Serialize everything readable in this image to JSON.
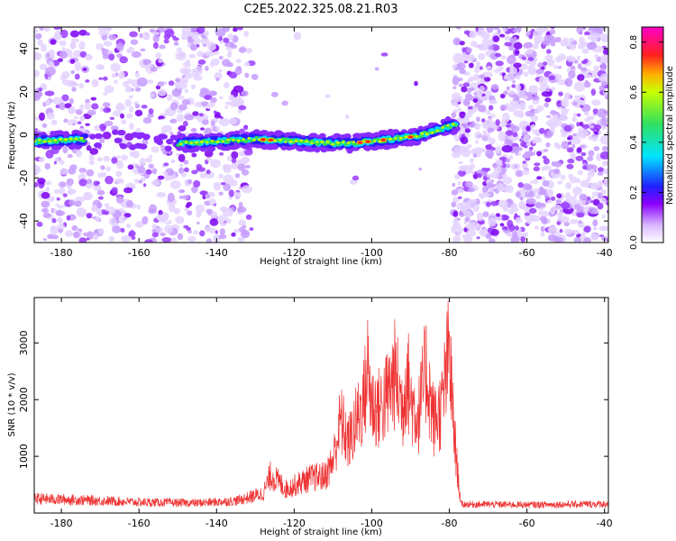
{
  "figure_title": "C2E5.2022.325.08.21.R03",
  "chart_data": [
    {
      "type": "heatmap",
      "xlabel": "Height of straight line (km)",
      "ylabel": "Frequency (Hz)",
      "xlim": [
        -187,
        -39
      ],
      "ylim": [
        -50,
        50
      ],
      "xticks": [
        -180,
        -160,
        -140,
        -120,
        -100,
        -80,
        -60,
        -40
      ],
      "yticks": [
        -40,
        -20,
        0,
        20,
        40
      ],
      "colorbar": {
        "label": "Normalized spectral amplitude",
        "range": [
          0,
          0.86
        ],
        "ticks": [
          0.0,
          0.2,
          0.4,
          0.6,
          0.8
        ],
        "colormap": "rainbow (white-violet-blue-cyan-green-yellow-red-magenta)"
      },
      "signal_trace": {
        "x": [
          -187,
          -175,
          -165,
          -150,
          -140,
          -130,
          -120,
          -110,
          -105,
          -100,
          -95,
          -90,
          -85,
          -80,
          -78
        ],
        "y": [
          -3,
          -2,
          -2,
          -4,
          -3,
          -2,
          -3,
          -4,
          -4,
          -3,
          -2,
          -1,
          1,
          4,
          5
        ]
      },
      "noise_regions": [
        {
          "x": [
            -187,
            -131
          ],
          "level": "moderate"
        },
        {
          "x": [
            -131,
            -79
          ],
          "level": "low"
        },
        {
          "x": [
            -79,
            -39
          ],
          "level": "high"
        }
      ]
    },
    {
      "type": "line",
      "xlabel": "Height of straight line (km)",
      "ylabel": "SNR (10 * v/v)",
      "xlim": [
        -187,
        -39
      ],
      "ylim": [
        0,
        3800
      ],
      "xticks": [
        -180,
        -160,
        -140,
        -120,
        -100,
        -80,
        -60,
        -40
      ],
      "yticks": [
        1000,
        2000,
        3000
      ],
      "color": "#ee3333",
      "series": [
        {
          "x": [
            -187,
            -175,
            -160,
            -145,
            -135,
            -128,
            -126,
            -122,
            -116,
            -112,
            -110,
            -108,
            -106,
            -104,
            -102,
            -101,
            -100,
            -98,
            -96,
            -94,
            -92,
            -91,
            -90,
            -88,
            -86,
            -84,
            -82,
            -80,
            -79,
            -78,
            -77,
            -70,
            -60,
            -50,
            -39
          ],
          "values": [
            330,
            300,
            250,
            230,
            280,
            450,
            880,
            550,
            800,
            850,
            1200,
            2150,
            1600,
            2100,
            2600,
            3380,
            2500,
            2400,
            2700,
            3200,
            2400,
            3350,
            2600,
            2200,
            3300,
            2100,
            2400,
            3750,
            2100,
            1050,
            200,
            200,
            190,
            200,
            210
          ]
        }
      ]
    }
  ]
}
